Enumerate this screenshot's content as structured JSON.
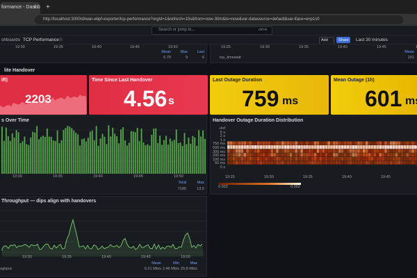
{
  "browser": {
    "tab_title": "formance - Dashb",
    "url": "http://localhost:3000/d/wan-ebpf-exporter/tcp-performance?orgId=1&refresh=10s&from=now-30m&to=now&var-datasource=default&var-iface=enp1s0"
  },
  "nav": {
    "breadcrumb": [
      "shboards",
      "TCP Performance"
    ],
    "search": "Search or jump to...",
    "shortcut": "ctrl+k",
    "add": "Add",
    "share": "Share",
    "time_range": "Last 30 minutes"
  },
  "top_panels": [
    {
      "x_labels": [
        "19:30",
        "19:35",
        "19:40",
        "19:45",
        "19:50"
      ],
      "legend_headers": [
        "Mean",
        "Max",
        "Last"
      ],
      "legend_values": [
        "6.79",
        "9",
        "6"
      ]
    },
    {
      "x_labels": [
        "19:25",
        "19:30",
        "19:35",
        "19:40",
        "19:45",
        "19:50"
      ],
      "legend_headers": [
        "Mean"
      ],
      "series_name": "tcp_timewait",
      "legend_values": [
        "101"
      ]
    }
  ],
  "row_title": "lite Handover",
  "stats": [
    {
      "title": "ift)",
      "value": "2203"
    },
    {
      "title": "Time Since Last Handover",
      "value": "4.56",
      "unit": "s"
    },
    {
      "title": "Last Outage Duration",
      "value": "759",
      "unit": "ms"
    },
    {
      "title": "Mean Outage (1h)",
      "value": "601",
      "unit": "ms"
    }
  ],
  "bar_panel": {
    "title": "s Over Time",
    "x_labels": [
      "19:30",
      "19:35",
      "19:40",
      "19:45",
      "19:50"
    ],
    "legend_headers": [
      "Total",
      "Max"
    ],
    "legend_values": [
      "7180",
      "13.5"
    ]
  },
  "heatmap": {
    "title": "Handover Outage Duration Distribution",
    "y_labels": [
      "+Inf",
      "5 s",
      "2 s",
      "1 s",
      "750 ms",
      "500 ms",
      "300 ms",
      "200 ms",
      "100 ms",
      "50 ms",
      "0 s"
    ],
    "x_labels": [
      "19:25",
      "19:30",
      "19:35",
      "19:40",
      "19:45",
      "19:50"
    ],
    "scale_labels": [
      "0.002",
      "0.092"
    ]
  },
  "throughput": {
    "title": "Throughput — dips align with handovers",
    "x_labels": [
      "19:30",
      "19:35",
      "19:40",
      "19:45",
      "19:50"
    ],
    "series_name": "ughput",
    "legend_headers": [
      "Mean",
      "Min",
      "Max"
    ],
    "legend_values": [
      "6.21 Mb/s",
      "2.46 Mb/s",
      "20.8 Mb/s"
    ]
  }
}
